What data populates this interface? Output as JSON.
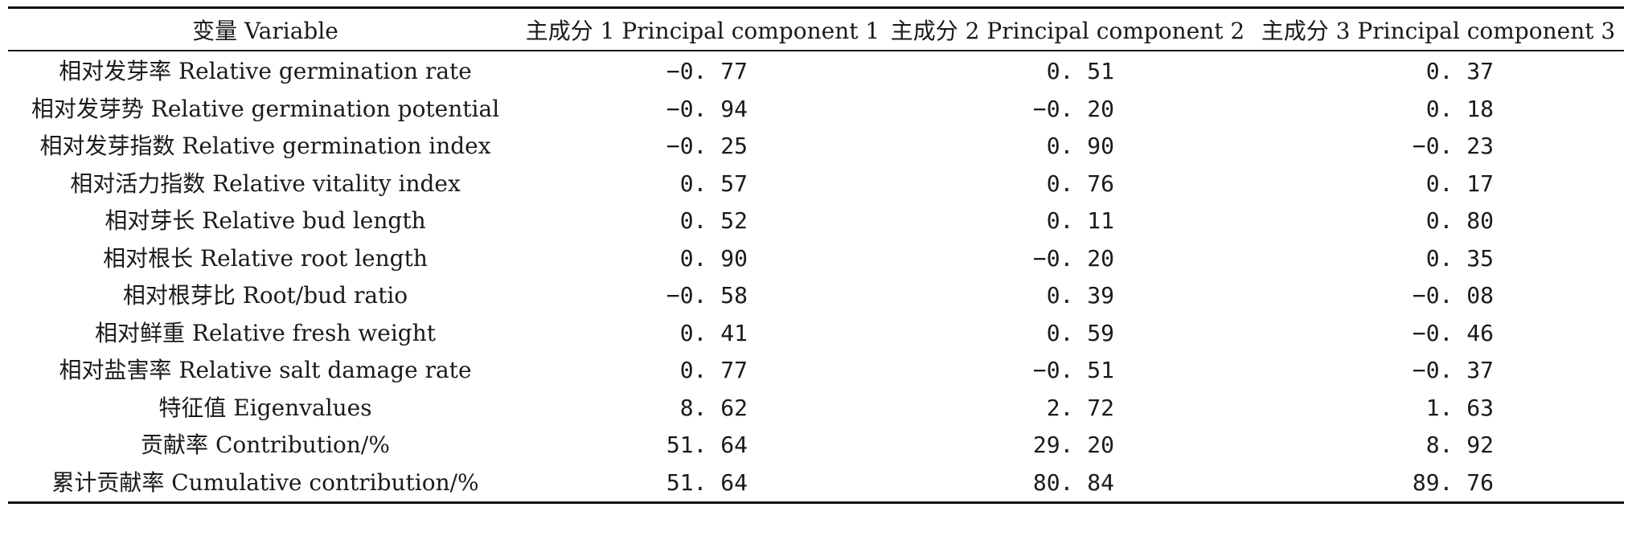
{
  "table": {
    "headers": [
      "变量 Variable",
      "主成分 1 Principal component 1",
      "主成分 2 Principal component 2",
      "主成分 3 Principal component 3"
    ],
    "rows": [
      {
        "variable": "相对发芽率 Relative germination rate",
        "pc1": "−0. 77",
        "pc2": "0. 51",
        "pc3": "0. 37"
      },
      {
        "variable": "相对发芽势 Relative germination potential",
        "pc1": "−0. 94",
        "pc2": "−0. 20",
        "pc3": "0. 18"
      },
      {
        "variable": "相对发芽指数 Relative germination index",
        "pc1": "−0. 25",
        "pc2": "0. 90",
        "pc3": "−0. 23"
      },
      {
        "variable": "相对活力指数 Relative vitality index",
        "pc1": "0. 57",
        "pc2": "0. 76",
        "pc3": "0. 17"
      },
      {
        "variable": "相对芽长 Relative bud length",
        "pc1": "0. 52",
        "pc2": "0. 11",
        "pc3": "0. 80"
      },
      {
        "variable": "相对根长 Relative root length",
        "pc1": "0. 90",
        "pc2": "−0. 20",
        "pc3": "0. 35"
      },
      {
        "variable": "相对根芽比 Root/bud ratio",
        "pc1": "−0. 58",
        "pc2": "0. 39",
        "pc3": "−0. 08"
      },
      {
        "variable": "相对鲜重 Relative fresh weight",
        "pc1": "0. 41",
        "pc2": "0. 59",
        "pc3": "−0. 46"
      },
      {
        "variable": "相对盐害率 Relative salt damage rate",
        "pc1": "0. 77",
        "pc2": "−0. 51",
        "pc3": "−0. 37"
      },
      {
        "variable": "特征值 Eigenvalues",
        "pc1": "8. 62",
        "pc2": "2. 72",
        "pc3": "1. 63"
      },
      {
        "variable": "贡献率 Contribution/%",
        "pc1": "51. 64",
        "pc2": "29. 20",
        "pc3": "8. 92"
      },
      {
        "variable": "累计贡献率 Cumulative contribution/%",
        "pc1": "51. 64",
        "pc2": "80. 84",
        "pc3": "89. 76"
      }
    ]
  }
}
